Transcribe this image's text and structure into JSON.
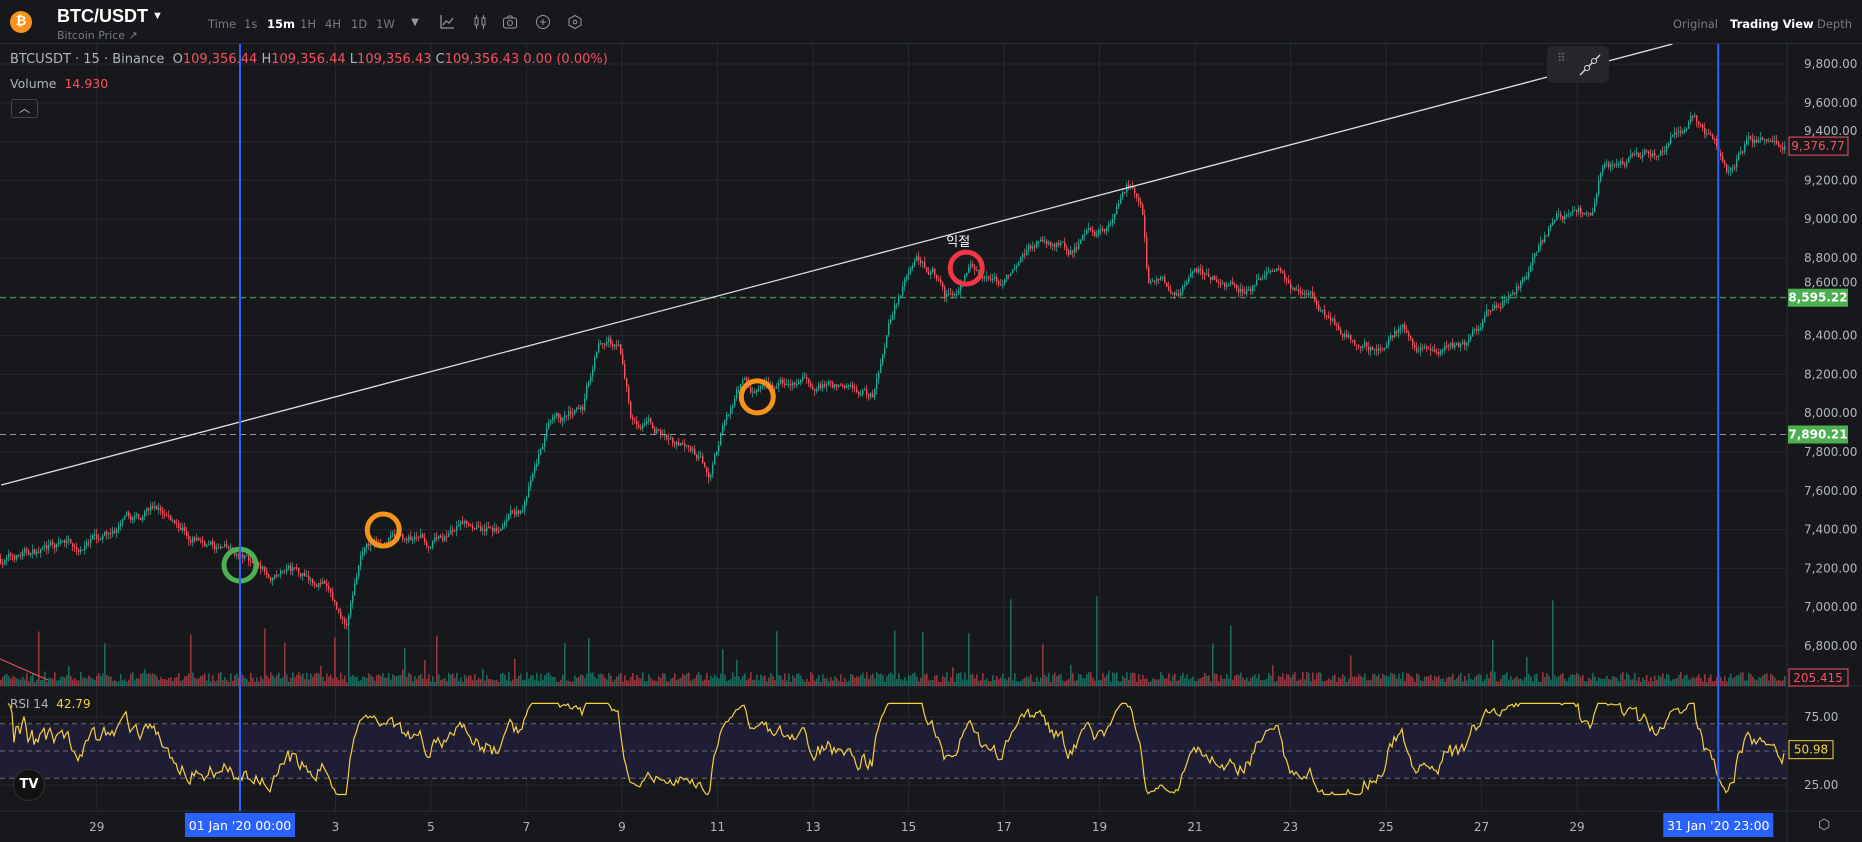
{
  "header": {
    "logo_glyph": "₿",
    "symbol": "BTC/USDT",
    "subtitle": "Bitcoin Price ↗",
    "timeframes": [
      "Time",
      "1s",
      "15m",
      "1H",
      "4H",
      "1D",
      "1W"
    ],
    "active_timeframe": "15m",
    "view_tabs": [
      "Original",
      "Trading View",
      "Depth"
    ],
    "active_view": "Trading View"
  },
  "legend": {
    "symbol_line": "BTCUSDT · 15 · Binance",
    "o_label": "O",
    "o": "109,356.44",
    "h_label": "H",
    "h": "109,356.44",
    "l_label": "L",
    "l": "109,356.43",
    "c_label": "C",
    "c": "109,356.43",
    "change": "0.00 (0.00%)",
    "volume_label": "Volume",
    "volume": "14.930",
    "rsi_label": "RSI 14",
    "rsi": "42.79"
  },
  "chart": {
    "colors": {
      "up": "#22ab94",
      "down": "#f7525f",
      "rsi": "#f5d142",
      "crosshair": "#2962ff",
      "green_label": "#4caf50"
    },
    "price_ticks": [
      "9,800.00",
      "9,600.00",
      "9,400.00",
      "9,200.00",
      "9,000.00",
      "8,800.00",
      "8,600.00",
      "8,400.00",
      "8,200.00",
      "8,000.00",
      "7,800.00",
      "7,600.00",
      "7,400.00",
      "7,200.00",
      "7,000.00",
      "6,800.00"
    ],
    "rsi_ticks": [
      "75.00",
      "25.00"
    ],
    "time_ticks": [
      [
        "2019-12-29",
        "29"
      ],
      [
        "2020-01-03",
        "3"
      ],
      [
        "2020-01-05",
        "5"
      ],
      [
        "2020-01-07",
        "7"
      ],
      [
        "2020-01-09",
        "9"
      ],
      [
        "2020-01-11",
        "11"
      ],
      [
        "2020-01-13",
        "13"
      ],
      [
        "2020-01-15",
        "15"
      ],
      [
        "2020-01-17",
        "17"
      ],
      [
        "2020-01-19",
        "19"
      ],
      [
        "2020-01-21",
        "21"
      ],
      [
        "2020-01-23",
        "23"
      ],
      [
        "2020-01-25",
        "25"
      ],
      [
        "2020-01-27",
        "27"
      ],
      [
        "2020-01-29",
        "29"
      ]
    ],
    "crosshair_labels": [
      [
        "2020-01-01T00:00",
        "01 Jan '20   00:00"
      ],
      [
        "2020-01-31T23:00",
        "31 Jan '20   23:00"
      ]
    ],
    "last_price": "9,376.77",
    "last_volume": "205.415",
    "last_rsi": "50.98",
    "horizontal_lines": [
      {
        "price": 8595.22,
        "label": "8,595.22"
      },
      {
        "price": 7890.21,
        "label": "7,890.21"
      }
    ],
    "trendline": [
      [
        "2019-12-27T00:00",
        7630
      ],
      [
        "2020-01-31T00:00",
        9903
      ]
    ],
    "markers": [
      {
        "date": "2020-01-01T00:00",
        "price": 7217,
        "color": "#4caf50",
        "text": ""
      },
      {
        "date": "2020-01-04T00:00",
        "price": 7398,
        "color": "#f7931a",
        "text": ""
      },
      {
        "date": "2020-01-11T20:00",
        "price": 8084,
        "color": "#f7931a",
        "text": ""
      },
      {
        "date": "2020-01-16T05:00",
        "price": 8748,
        "color": "#f23645",
        "text": "익절"
      }
    ],
    "price_path": [
      [
        "2019-12-27T00:00",
        7250
      ],
      [
        "2019-12-29T00:00",
        7330
      ],
      [
        "2019-12-30T05:00",
        7500
      ],
      [
        "2020-01-01T00:00",
        7240
      ],
      [
        "2020-01-02T17:00",
        7150
      ],
      [
        "2020-01-03T05:00",
        6900
      ],
      [
        "2020-01-03T13:00",
        7300
      ],
      [
        "2020-01-04T00:00",
        7350
      ],
      [
        "2020-01-05T00:00",
        7350
      ],
      [
        "2020-01-05T22:00",
        7450
      ],
      [
        "2020-01-06T10:00",
        7400
      ],
      [
        "2020-01-06T22:00",
        7500
      ],
      [
        "2020-01-07T10:00",
        7900
      ],
      [
        "2020-01-08T04:00",
        8000
      ],
      [
        "2020-01-08T12:00",
        8400
      ],
      [
        "2020-01-08T22:00",
        8350
      ],
      [
        "2020-01-09T04:00",
        8000
      ],
      [
        "2020-01-10T04:00",
        7850
      ],
      [
        "2020-01-10T20:00",
        7700
      ],
      [
        "2020-01-11T04:00",
        8000
      ],
      [
        "2020-01-11T12:00",
        8150
      ],
      [
        "2020-01-11T21:00",
        8100
      ],
      [
        "2020-01-13T03:00",
        8150
      ],
      [
        "2020-01-14T06:00",
        8100
      ],
      [
        "2020-01-14T14:00",
        8500
      ],
      [
        "2020-01-15T03:00",
        8800
      ],
      [
        "2020-01-15T12:00",
        8750
      ],
      [
        "2020-01-15T18:00",
        8600
      ],
      [
        "2020-01-16T06:00",
        8750
      ],
      [
        "2020-01-16T21:00",
        8650
      ],
      [
        "2020-01-17T18:00",
        8900
      ],
      [
        "2020-01-18T08:00",
        8850
      ],
      [
        "2020-01-19T05:00",
        8950
      ],
      [
        "2020-01-19T14:00",
        9150
      ],
      [
        "2020-01-19T21:00",
        9050
      ],
      [
        "2020-01-20T00:00",
        8650
      ],
      [
        "2020-01-20T11:00",
        8650
      ],
      [
        "2020-01-21T02:00",
        8700
      ],
      [
        "2020-01-22T02:00",
        8650
      ],
      [
        "2020-01-22T14:00",
        8750
      ],
      [
        "2020-01-23T05:00",
        8650
      ],
      [
        "2020-01-23T20:00",
        8500
      ],
      [
        "2020-01-24T05:00",
        8400
      ],
      [
        "2020-01-24T23:00",
        8300
      ],
      [
        "2020-01-25T08:00",
        8450
      ],
      [
        "2020-01-25T15:00",
        8300
      ],
      [
        "2020-01-26T17:00",
        8350
      ],
      [
        "2020-01-27T05:00",
        8550
      ],
      [
        "2020-01-27T22:00",
        8700
      ],
      [
        "2020-01-28T13:00",
        9000
      ],
      [
        "2020-01-29T01:00",
        9050
      ],
      [
        "2020-01-29T07:00",
        9000
      ],
      [
        "2020-01-29T13:00",
        9300
      ],
      [
        "2020-01-30T19:00",
        9350
      ],
      [
        "2020-01-31T10:00",
        9550
      ],
      [
        "2020-01-31T22:00",
        9350
      ],
      [
        "2020-02-01T04:00",
        9250
      ],
      [
        "2020-02-01T13:00",
        9400
      ],
      [
        "2020-02-02T08:00",
        9370
      ]
    ]
  }
}
